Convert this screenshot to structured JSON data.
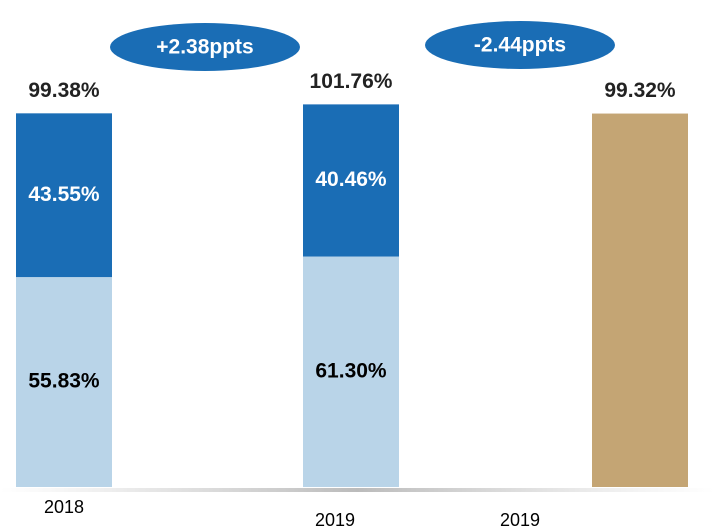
{
  "chart_data": {
    "type": "stacked_bar",
    "categories": [
      "2018",
      "2019",
      "2019"
    ],
    "series": [
      {
        "color": "#b9d4e8",
        "values": [
          55.83,
          61.3,
          null
        ],
        "value_labels": [
          "55.83%",
          "61.30%",
          null
        ],
        "label_color": "#000000"
      },
      {
        "color": "#1a6db5",
        "values": [
          43.55,
          40.46,
          null
        ],
        "value_labels": [
          "43.55%",
          "40.46%",
          null
        ],
        "label_color": "#ffffff"
      },
      {
        "color": "#c4a574",
        "values": [
          null,
          null,
          99.32
        ]
      }
    ],
    "totals": [
      99.38,
      101.76,
      99.32
    ],
    "total_labels": [
      "99.38%",
      "101.76%",
      "99.32%"
    ],
    "annotations": [
      "+2.38ppts",
      "-2.44ppts"
    ],
    "annotation_color": "#1a6db5",
    "ylim": [
      0,
      105
    ]
  }
}
